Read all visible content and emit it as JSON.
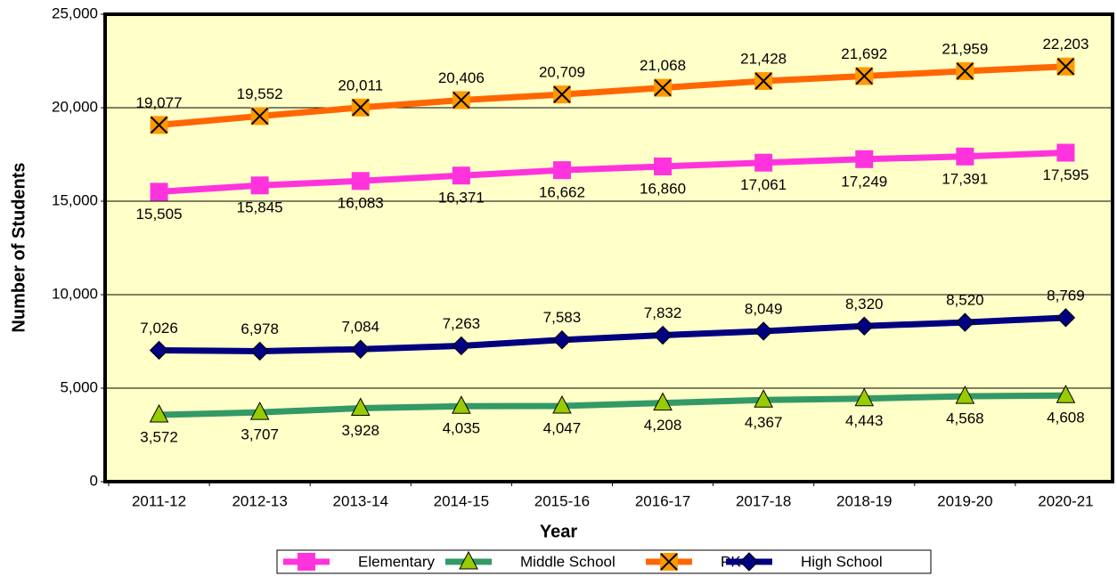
{
  "chart_data": {
    "type": "line",
    "xlabel": "Year",
    "ylabel": "Number of Students",
    "categories": [
      "2011-12",
      "2012-13",
      "2013-14",
      "2014-15",
      "2015-16",
      "2016-17",
      "2017-18",
      "2018-19",
      "2019-20",
      "2020-21"
    ],
    "ylim": [
      0,
      25000
    ],
    "yticks": [
      0,
      {
        "value": 5000,
        "label": "5,000"
      },
      {
        "value": 10000,
        "label": "10,000"
      },
      {
        "value": 15000,
        "label": "15,000"
      },
      {
        "value": 20000,
        "label": "20,000"
      },
      {
        "value": 25000,
        "label": "25,000"
      }
    ],
    "grid": true,
    "legend": "bottom",
    "series": [
      {
        "name": "Elementary",
        "color": "#ff33dd",
        "marker": "square",
        "marker_color": "#ff33dd",
        "label_position": "below",
        "values": [
          15505,
          15845,
          16083,
          16371,
          16662,
          16860,
          17061,
          17249,
          17391,
          17595
        ],
        "value_labels": [
          "15,505",
          "15,845",
          "16,083",
          "16,371",
          "16,662",
          "16,860",
          "17,061",
          "17,249",
          "17,391",
          "17,595"
        ]
      },
      {
        "name": "Middle School",
        "color": "#339966",
        "marker": "triangle",
        "marker_color": "#99cc00",
        "label_position": "below",
        "values": [
          3572,
          3707,
          3928,
          4035,
          4047,
          4208,
          4367,
          4443,
          4568,
          4608
        ],
        "value_labels": [
          "3,572",
          "3,707",
          "3,928",
          "4,035",
          "4,047",
          "4,208",
          "4,367",
          "4,443",
          "4,568",
          "4,608"
        ]
      },
      {
        "name": "PK-8",
        "color": "#ff6600",
        "marker": "x",
        "marker_color": "#ff9900",
        "label_position": "above",
        "values": [
          19077,
          19552,
          20011,
          20406,
          20709,
          21068,
          21428,
          21692,
          21959,
          22203
        ],
        "value_labels": [
          "19,077",
          "19,552",
          "20,011",
          "20,406",
          "20,709",
          "21,068",
          "21,428",
          "21,692",
          "21,959",
          "22,203"
        ]
      },
      {
        "name": "High School",
        "color": "#000080",
        "marker": "diamond",
        "marker_color": "#000080",
        "label_position": "above",
        "values": [
          7026,
          6978,
          7084,
          7263,
          7583,
          7832,
          8049,
          8320,
          8520,
          8769
        ],
        "value_labels": [
          "7,026",
          "6,978",
          "7,084",
          "7,263",
          "7,583",
          "7,832",
          "8,049",
          "8,320",
          "8,520",
          "8,769"
        ]
      }
    ]
  }
}
